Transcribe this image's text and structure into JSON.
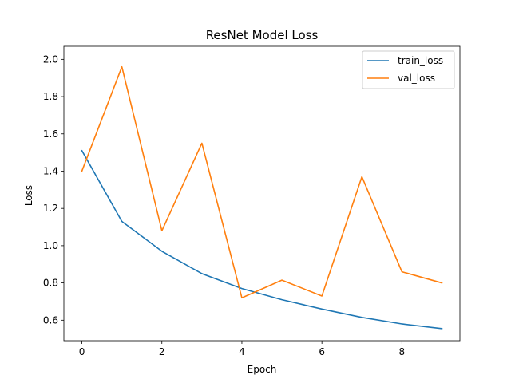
{
  "chart_data": {
    "type": "line",
    "title": "ResNet Model Loss",
    "xlabel": "Epoch",
    "ylabel": "Loss",
    "x": [
      0,
      1,
      2,
      3,
      4,
      5,
      6,
      7,
      8,
      9
    ],
    "xlim": [
      -0.45,
      9.45
    ],
    "ylim": [
      0.49,
      2.07
    ],
    "xticks": [
      0,
      2,
      4,
      6,
      8
    ],
    "xtick_labels": [
      "0",
      "2",
      "4",
      "6",
      "8"
    ],
    "yticks": [
      0.6,
      0.8,
      1.0,
      1.2,
      1.4,
      1.6,
      1.8,
      2.0
    ],
    "ytick_labels": [
      "0.6",
      "0.8",
      "1.0",
      "1.2",
      "1.4",
      "1.6",
      "1.8",
      "2.0"
    ],
    "grid": false,
    "legend_position": "top-right",
    "series": [
      {
        "name": "train_loss",
        "color": "#1f77b4",
        "values": [
          1.51,
          1.13,
          0.97,
          0.85,
          0.77,
          0.71,
          0.66,
          0.615,
          0.58,
          0.555
        ]
      },
      {
        "name": "val_loss",
        "color": "#ff7f0e",
        "values": [
          1.4,
          1.96,
          1.08,
          1.55,
          0.72,
          0.815,
          0.73,
          1.37,
          0.86,
          0.8
        ]
      }
    ]
  }
}
